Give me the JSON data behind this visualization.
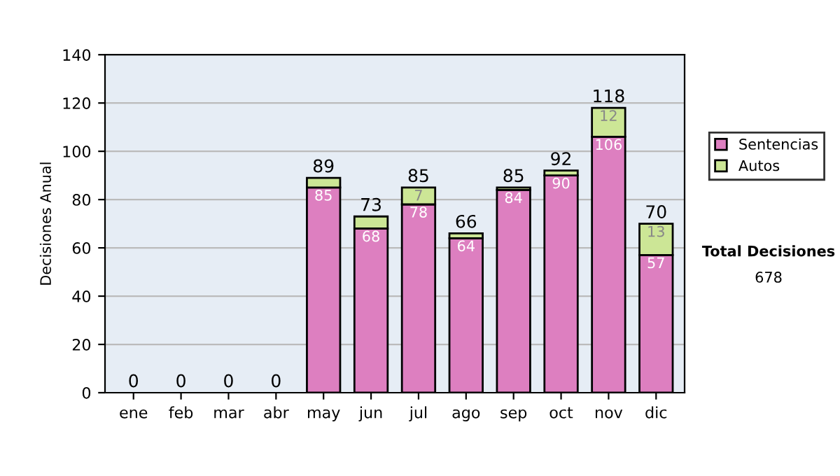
{
  "chart_data": {
    "type": "bar",
    "stacked": true,
    "ylabel": "Decisiones Anual",
    "categories": [
      "ene",
      "feb",
      "mar",
      "abr",
      "may",
      "jun",
      "jul",
      "ago",
      "sep",
      "oct",
      "nov",
      "dic"
    ],
    "series": [
      {
        "name": "Sentencias",
        "color": "#dd7fc0",
        "values": [
          0,
          0,
          0,
          0,
          85,
          68,
          78,
          64,
          84,
          90,
          106,
          57
        ],
        "value_labels": [
          null,
          null,
          null,
          null,
          "85",
          "68",
          "78",
          "64",
          "84",
          "90",
          "106",
          "57"
        ]
      },
      {
        "name": "Autos",
        "color": "#cce696",
        "values": [
          0,
          0,
          0,
          0,
          4,
          5,
          7,
          2,
          1,
          2,
          12,
          13
        ],
        "value_labels": [
          null,
          null,
          null,
          null,
          null,
          null,
          "7",
          null,
          null,
          null,
          "12",
          "13"
        ]
      }
    ],
    "totals": [
      "0",
      "0",
      "0",
      "0",
      "89",
      "73",
      "85",
      "66",
      "85",
      "92",
      "118",
      "70"
    ],
    "ylim": [
      0,
      140
    ],
    "yticks": [
      0,
      20,
      40,
      60,
      80,
      100,
      120,
      140
    ],
    "grid": "y",
    "legend": "right",
    "annotations": [
      "Total Decisiones",
      "678"
    ]
  }
}
